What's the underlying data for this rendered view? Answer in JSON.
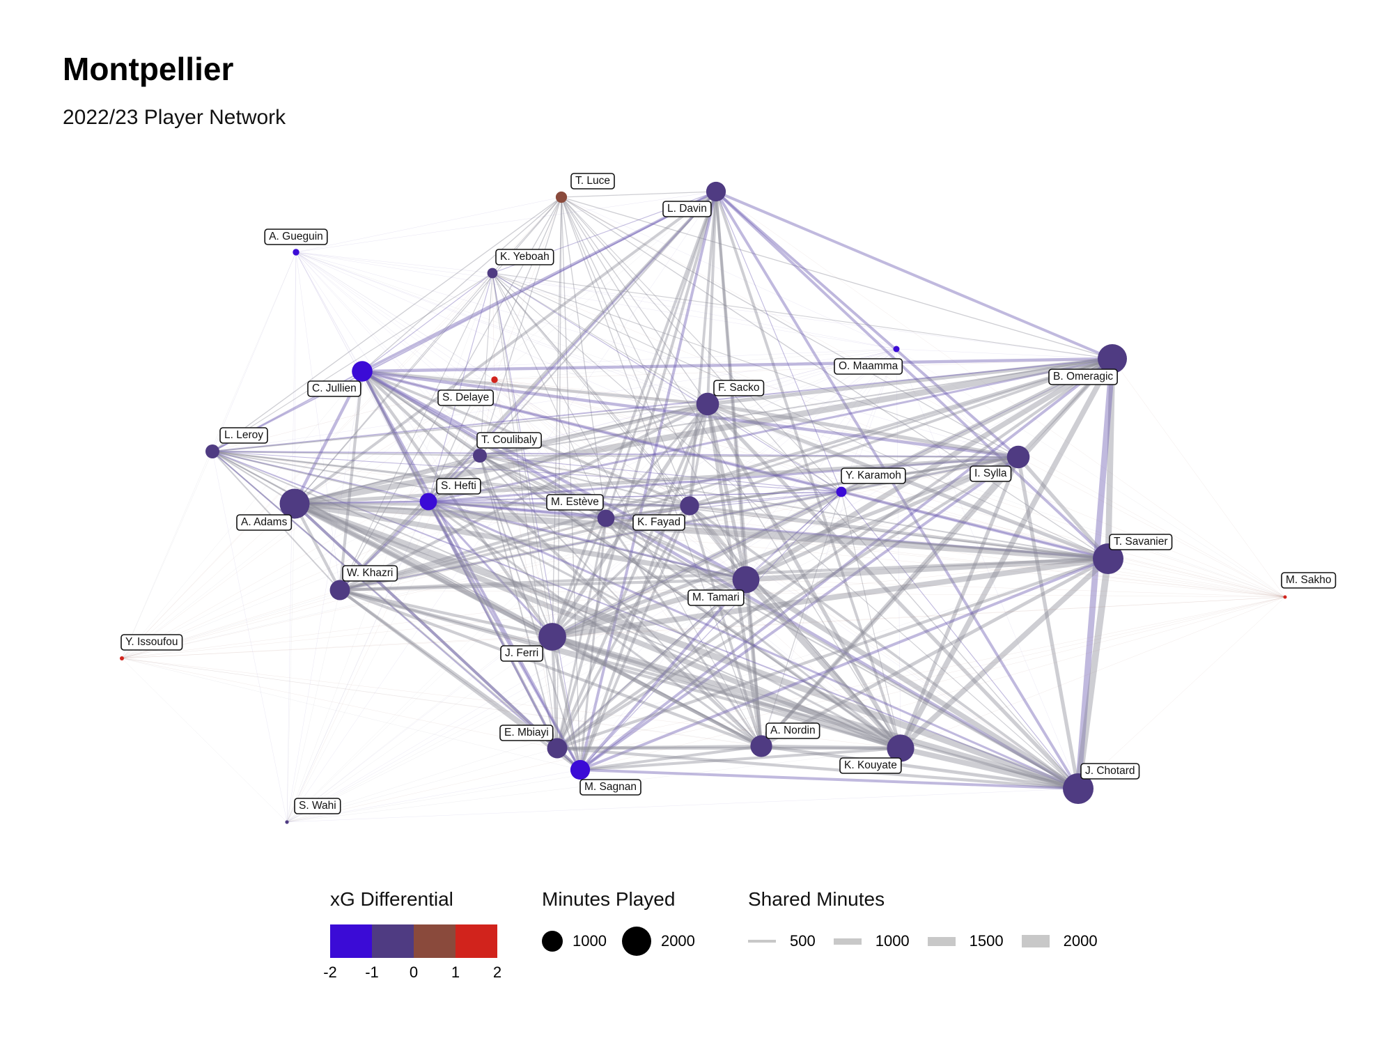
{
  "header": {
    "title": "Montpellier",
    "subtitle": "2022/23 Player Network"
  },
  "colors": {
    "xg_bins": [
      "#3b0bd6",
      "#4f3b82",
      "#8a4a3c",
      "#d1231c"
    ],
    "node_default": "#4a4a5e"
  },
  "players": [
    {
      "id": "luce",
      "name": "T. Luce",
      "minutes": 300,
      "xg_diff": 0.3
    },
    {
      "id": "davin",
      "name": "L. Davin",
      "minutes": 900,
      "xg_diff": -1.0
    },
    {
      "id": "gueguin",
      "name": "A. Gueguin",
      "minutes": 100,
      "xg_diff": -2.0
    },
    {
      "id": "yeboah",
      "name": "K. Yeboah",
      "minutes": 250,
      "xg_diff": -0.6
    },
    {
      "id": "maamma",
      "name": "O. Maamma",
      "minutes": 90,
      "xg_diff": -2.2
    },
    {
      "id": "omeragic",
      "name": "B. Omeragic",
      "minutes": 2000,
      "xg_diff": -0.8
    },
    {
      "id": "jullien",
      "name": "C. Jullien",
      "minutes": 1000,
      "xg_diff": -1.1
    },
    {
      "id": "delaye",
      "name": "S. Delaye",
      "minutes": 100,
      "xg_diff": 1.4
    },
    {
      "id": "sacko",
      "name": "F. Sacko",
      "minutes": 1200,
      "xg_diff": -0.1
    },
    {
      "id": "leroy",
      "name": "L. Leroy",
      "minutes": 450,
      "xg_diff": -0.9
    },
    {
      "id": "coulibaly",
      "name": "T. Coulibaly",
      "minutes": 450,
      "xg_diff": -0.3
    },
    {
      "id": "sylla",
      "name": "I. Sylla",
      "minutes": 1200,
      "xg_diff": -0.7
    },
    {
      "id": "karamoh",
      "name": "Y. Karamoh",
      "minutes": 250,
      "xg_diff": -1.3
    },
    {
      "id": "hefti",
      "name": "S. Hefti",
      "minutes": 700,
      "xg_diff": -1.3
    },
    {
      "id": "esteve",
      "name": "M. Estève",
      "minutes": 700,
      "xg_diff": -0.4
    },
    {
      "id": "fayad",
      "name": "K. Fayad",
      "minutes": 850,
      "xg_diff": -0.3
    },
    {
      "id": "adams",
      "name": "A. Adams",
      "minutes": 2100,
      "xg_diff": -0.5
    },
    {
      "id": "savanier",
      "name": "T. Savanier",
      "minutes": 2200,
      "xg_diff": -0.6
    },
    {
      "id": "sakho",
      "name": "M. Sakho",
      "minutes": 20,
      "xg_diff": 2.0
    },
    {
      "id": "khazri",
      "name": "W. Khazri",
      "minutes": 950,
      "xg_diff": -0.3
    },
    {
      "id": "tamari",
      "name": "M. Tamari",
      "minutes": 1700,
      "xg_diff": -0.5
    },
    {
      "id": "issoufou",
      "name": "Y. Issoufou",
      "minutes": 40,
      "xg_diff": 1.2
    },
    {
      "id": "ferri",
      "name": "J. Ferri",
      "minutes": 1800,
      "xg_diff": -0.3
    },
    {
      "id": "mbiayi",
      "name": "E. Mbiayi",
      "minutes": 950,
      "xg_diff": -0.3
    },
    {
      "id": "nordin",
      "name": "A. Nordin",
      "minutes": 1100,
      "xg_diff": -0.2
    },
    {
      "id": "kouyate",
      "name": "K. Kouyate",
      "minutes": 1750,
      "xg_diff": -0.2
    },
    {
      "id": "sagnan",
      "name": "M. Sagnan",
      "minutes": 900,
      "xg_diff": -1.1
    },
    {
      "id": "chotard",
      "name": "J. Chotard",
      "minutes": 2200,
      "xg_diff": -0.8
    },
    {
      "id": "wahi",
      "name": "S. Wahi",
      "minutes": 30,
      "xg_diff": -0.8
    }
  ],
  "legend": {
    "xg": {
      "title": "xG Differential",
      "ticks": [
        "-2",
        "-1",
        "0",
        "1",
        "2"
      ]
    },
    "minutes": {
      "title": "Minutes Played",
      "items": [
        {
          "label": "1000",
          "value": 1000
        },
        {
          "label": "2000",
          "value": 2000
        }
      ]
    },
    "shared": {
      "title": "Shared Minutes",
      "items": [
        {
          "label": "500",
          "value": 500
        },
        {
          "label": "1000",
          "value": 1000
        },
        {
          "label": "1500",
          "value": 1500
        },
        {
          "label": "2000",
          "value": 2000
        }
      ]
    }
  }
}
